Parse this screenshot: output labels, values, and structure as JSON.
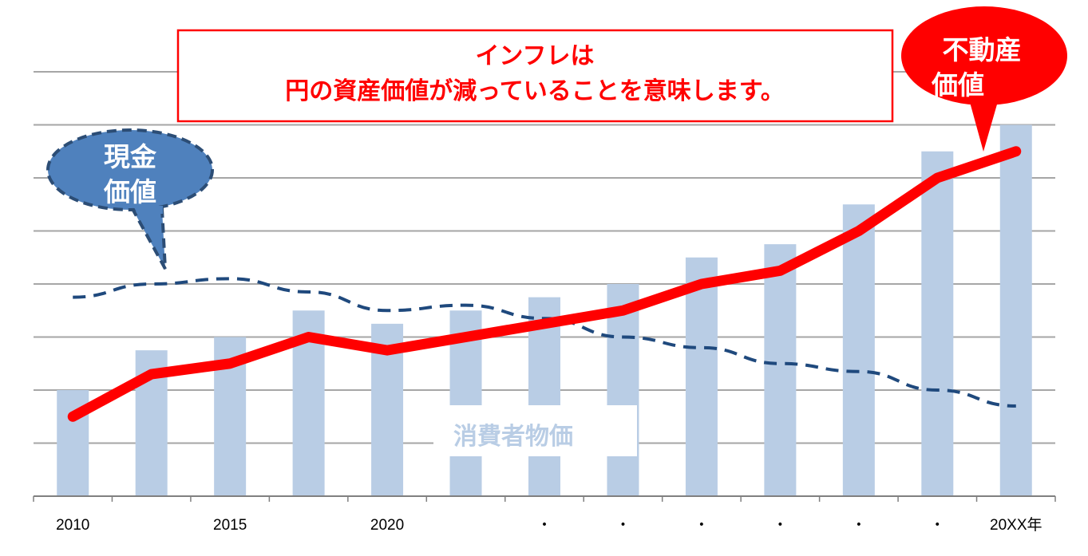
{
  "chart_data": {
    "type": "bar+line",
    "title": "",
    "xlabel": "",
    "ylabel": "",
    "ylim": [
      0,
      8
    ],
    "grid": true,
    "categories": [
      "2010",
      "",
      "2015",
      "",
      "2020",
      "",
      "・",
      "・",
      "・",
      "・",
      "・",
      "・",
      "20XX年"
    ],
    "series": [
      {
        "name": "消費者物価",
        "type": "bar",
        "color": "#b9cde5",
        "values": [
          2.0,
          2.75,
          3.0,
          3.5,
          3.25,
          3.5,
          3.75,
          4.0,
          4.5,
          4.75,
          5.5,
          6.5,
          7.0
        ]
      },
      {
        "name": "不動産価値",
        "type": "line",
        "color": "#ff0000",
        "values": [
          1.5,
          2.3,
          2.5,
          3.0,
          2.75,
          3.0,
          3.25,
          3.5,
          4.0,
          4.25,
          5.0,
          6.0,
          6.5
        ]
      },
      {
        "name": "現金価値",
        "type": "line-dashed",
        "color": "#1f497d",
        "values": [
          3.75,
          4.0,
          4.1,
          3.85,
          3.5,
          3.6,
          3.35,
          3.0,
          2.8,
          2.5,
          2.35,
          2.0,
          1.7
        ]
      }
    ],
    "annotations": {
      "message_line1": "インフレは",
      "message_line2": "円の資産価値が減っていることを意味します。",
      "cash_label_line1": "現金",
      "cash_label_line2": "価値",
      "realestate_label_line1": "不動産",
      "realestate_label_line2": "価値",
      "cpi_label": "消費者物価"
    }
  }
}
